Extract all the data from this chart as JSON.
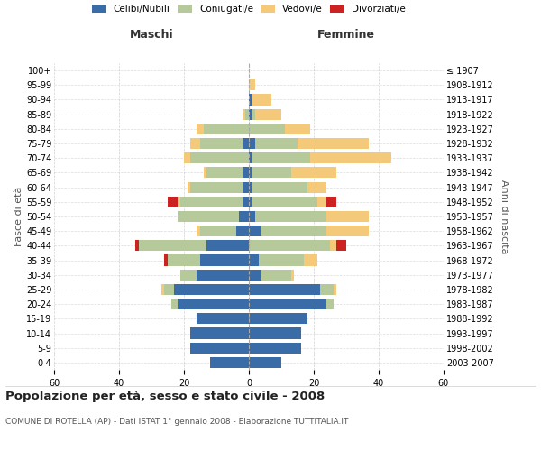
{
  "age_groups": [
    "0-4",
    "5-9",
    "10-14",
    "15-19",
    "20-24",
    "25-29",
    "30-34",
    "35-39",
    "40-44",
    "45-49",
    "50-54",
    "55-59",
    "60-64",
    "65-69",
    "70-74",
    "75-79",
    "80-84",
    "85-89",
    "90-94",
    "95-99",
    "100+"
  ],
  "birth_years": [
    "2003-2007",
    "1998-2002",
    "1993-1997",
    "1988-1992",
    "1983-1987",
    "1978-1982",
    "1973-1977",
    "1968-1972",
    "1963-1967",
    "1958-1962",
    "1953-1957",
    "1948-1952",
    "1943-1947",
    "1938-1942",
    "1933-1937",
    "1928-1932",
    "1923-1927",
    "1918-1922",
    "1913-1917",
    "1908-1912",
    "≤ 1907"
  ],
  "males": {
    "celibi": [
      12,
      18,
      18,
      16,
      22,
      23,
      16,
      15,
      13,
      4,
      3,
      2,
      2,
      2,
      0,
      2,
      0,
      0,
      0,
      0,
      0
    ],
    "coniugati": [
      0,
      0,
      0,
      0,
      2,
      3,
      5,
      10,
      21,
      11,
      19,
      19,
      16,
      11,
      18,
      13,
      14,
      1,
      0,
      0,
      0
    ],
    "vedovi": [
      0,
      0,
      0,
      0,
      0,
      1,
      0,
      0,
      0,
      1,
      0,
      1,
      1,
      1,
      2,
      3,
      2,
      1,
      0,
      0,
      0
    ],
    "divorziati": [
      0,
      0,
      0,
      0,
      0,
      0,
      0,
      1,
      1,
      0,
      0,
      3,
      0,
      0,
      0,
      0,
      0,
      0,
      0,
      0,
      0
    ]
  },
  "females": {
    "nubili": [
      10,
      16,
      16,
      18,
      24,
      22,
      4,
      3,
      0,
      4,
      2,
      1,
      1,
      1,
      1,
      2,
      0,
      1,
      1,
      0,
      0
    ],
    "coniugate": [
      0,
      0,
      0,
      0,
      2,
      4,
      9,
      14,
      25,
      20,
      22,
      20,
      17,
      12,
      18,
      13,
      11,
      1,
      0,
      0,
      0
    ],
    "vedove": [
      0,
      0,
      0,
      0,
      0,
      1,
      1,
      4,
      2,
      13,
      13,
      3,
      6,
      14,
      25,
      22,
      8,
      8,
      6,
      2,
      0
    ],
    "divorziate": [
      0,
      0,
      0,
      0,
      0,
      0,
      0,
      0,
      3,
      0,
      0,
      3,
      0,
      0,
      0,
      0,
      0,
      0,
      0,
      0,
      0
    ]
  },
  "colors": {
    "celibi": "#3a6ca8",
    "coniugati": "#b5c99a",
    "vedovi": "#f5c97a",
    "divorziati": "#cc2222"
  },
  "title": "Popolazione per età, sesso e stato civile - 2008",
  "subtitle": "COMUNE DI ROTELLA (AP) - Dati ISTAT 1° gennaio 2008 - Elaborazione TUTTITALIA.IT",
  "xlabel_left": "Maschi",
  "xlabel_right": "Femmine",
  "ylabel_left": "Fasce di età",
  "ylabel_right": "Anni di nascita",
  "xlim": 60,
  "legend_labels": [
    "Celibi/Nubili",
    "Coniugati/e",
    "Vedovi/e",
    "Divorziati/e"
  ],
  "background_color": "#ffffff",
  "grid_color": "#cccccc"
}
